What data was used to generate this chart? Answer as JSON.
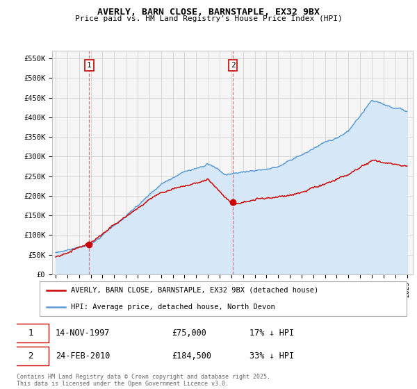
{
  "title": "AVERLY, BARN CLOSE, BARNSTAPLE, EX32 9BX",
  "subtitle": "Price paid vs. HM Land Registry's House Price Index (HPI)",
  "ylabel_ticks": [
    "£0",
    "£50K",
    "£100K",
    "£150K",
    "£200K",
    "£250K",
    "£300K",
    "£350K",
    "£400K",
    "£450K",
    "£500K",
    "£550K"
  ],
  "ytick_values": [
    0,
    50000,
    100000,
    150000,
    200000,
    250000,
    300000,
    350000,
    400000,
    450000,
    500000,
    550000
  ],
  "ylim": [
    0,
    570000
  ],
  "xlim_start": 1994.7,
  "xlim_end": 2025.5,
  "purchase1_year": 1997.87,
  "purchase1_value": 75000,
  "purchase2_year": 2010.14,
  "purchase2_value": 184500,
  "hpi_color": "#5b9bd5",
  "hpi_fill_color": "#d6e8f7",
  "price_color": "#cc0000",
  "dashed_line_color": "#cc6666",
  "legend_label_price": "AVERLY, BARN CLOSE, BARNSTAPLE, EX32 9BX (detached house)",
  "legend_label_hpi": "HPI: Average price, detached house, North Devon",
  "footnote": "Contains HM Land Registry data © Crown copyright and database right 2025.\nThis data is licensed under the Open Government Licence v3.0.",
  "table_row1": [
    "1",
    "14-NOV-1997",
    "£75,000",
    "17% ↓ HPI"
  ],
  "table_row2": [
    "2",
    "24-FEB-2010",
    "£184,500",
    "33% ↓ HPI"
  ],
  "background_color": "#f5f5f5",
  "grid_color": "#cccccc"
}
